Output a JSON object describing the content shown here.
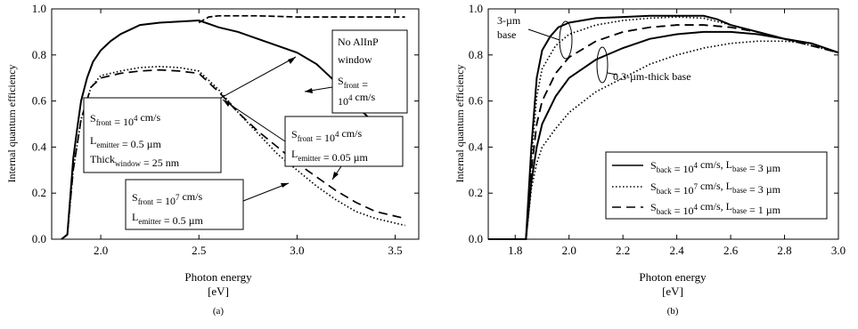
{
  "colors": {
    "ink": "#000000",
    "background": "#ffffff"
  },
  "chart_data": [
    {
      "id": "a",
      "type": "line",
      "panel_label": "(a)",
      "xlabel": "Photon energy",
      "xunit": "[eV]",
      "ylabel": "Internal quantum efficiency",
      "xlim": [
        1.75,
        3.62
      ],
      "ylim": [
        0.0,
        1.0
      ],
      "x_ticks": [
        "2.0",
        "2.5",
        "3.0",
        "3.5"
      ],
      "x_tick_values": [
        2.0,
        2.5,
        3.0,
        3.5
      ],
      "y_ticks": [
        "0.0",
        "0.2",
        "0.4",
        "0.6",
        "0.8",
        "1.0"
      ],
      "y_tick_values": [
        0.0,
        0.2,
        0.4,
        0.6,
        0.8,
        1.0
      ],
      "series": [
        {
          "style": "solid",
          "x": [
            1.8,
            1.83,
            1.86,
            1.88,
            1.9,
            1.93,
            1.96,
            2.0,
            2.05,
            2.1,
            2.15,
            2.2,
            2.3,
            2.4,
            2.5,
            2.55,
            2.6,
            2.7,
            2.8,
            2.9,
            3.0,
            3.1,
            3.2,
            3.3,
            3.4
          ],
          "y": [
            0.0,
            0.02,
            0.35,
            0.48,
            0.6,
            0.7,
            0.77,
            0.82,
            0.86,
            0.89,
            0.91,
            0.93,
            0.94,
            0.945,
            0.95,
            0.935,
            0.92,
            0.9,
            0.87,
            0.84,
            0.81,
            0.76,
            0.68,
            0.58,
            0.5
          ]
        },
        {
          "style": "dashed",
          "x": [
            2.5,
            2.55,
            2.6,
            2.8,
            3.0,
            3.2,
            3.4,
            3.55
          ],
          "y": [
            0.94,
            0.965,
            0.97,
            0.97,
            0.965,
            0.965,
            0.965,
            0.965
          ]
        },
        {
          "style": "dotted",
          "x": [
            1.8,
            1.83,
            1.86,
            1.9,
            1.95,
            2.0,
            2.1,
            2.2,
            2.3,
            2.4,
            2.5,
            2.6,
            2.7,
            2.8,
            2.9,
            3.0,
            3.1,
            3.2,
            3.3,
            3.4,
            3.55
          ],
          "y": [
            0.0,
            0.02,
            0.3,
            0.52,
            0.66,
            0.71,
            0.73,
            0.745,
            0.75,
            0.745,
            0.73,
            0.65,
            0.55,
            0.46,
            0.37,
            0.3,
            0.23,
            0.17,
            0.12,
            0.09,
            0.06
          ]
        },
        {
          "style": "longdash",
          "x": [
            1.8,
            1.83,
            1.86,
            1.9,
            1.95,
            2.0,
            2.1,
            2.2,
            2.3,
            2.4,
            2.5,
            2.6,
            2.7,
            2.8,
            2.9,
            3.0,
            3.1,
            3.2,
            3.3,
            3.4,
            3.55
          ],
          "y": [
            0.0,
            0.02,
            0.3,
            0.52,
            0.66,
            0.7,
            0.72,
            0.73,
            0.735,
            0.73,
            0.72,
            0.64,
            0.55,
            0.47,
            0.4,
            0.33,
            0.27,
            0.21,
            0.16,
            0.12,
            0.09
          ]
        }
      ],
      "annotations": [
        {
          "lines": [
            "No AlInP",
            "window",
            "S_front =",
            "10^4 cm/s"
          ]
        },
        {
          "lines": [
            "S_front = 10^4 cm/s",
            "L_emitter = 0.5 µm",
            "Thick_window = 25 nm"
          ]
        },
        {
          "lines": [
            "S_front = 10^4 cm/s",
            "L_emitter = 0.05 µm"
          ]
        },
        {
          "lines": [
            "S_front = 10^7 cm/s",
            "L_emitter = 0.5 µm"
          ]
        }
      ]
    },
    {
      "id": "b",
      "type": "line",
      "panel_label": "(b)",
      "xlabel": "Photon energy",
      "xunit": "[eV]",
      "ylabel": "Internal quantum efficiency",
      "xlim": [
        1.7,
        3.0
      ],
      "ylim": [
        0.0,
        1.0
      ],
      "x_ticks": [
        "1.8",
        "2.0",
        "2.2",
        "2.4",
        "2.6",
        "2.8",
        "3.0"
      ],
      "x_tick_values": [
        1.8,
        2.0,
        2.2,
        2.4,
        2.6,
        2.8,
        3.0
      ],
      "y_ticks": [
        "0.0",
        "0.2",
        "0.4",
        "0.6",
        "0.8",
        "1.0"
      ],
      "y_tick_values": [
        0.0,
        0.2,
        0.4,
        0.6,
        0.8,
        1.0
      ],
      "series": [
        {
          "style": "solid",
          "x": [
            1.7,
            1.84,
            1.86,
            1.88,
            1.9,
            1.93,
            1.96,
            2.0,
            2.1,
            2.2,
            2.3,
            2.4,
            2.5,
            2.55,
            2.6,
            2.7,
            2.8,
            2.9,
            3.0
          ],
          "y": [
            0.0,
            0.0,
            0.4,
            0.7,
            0.82,
            0.88,
            0.92,
            0.94,
            0.96,
            0.965,
            0.97,
            0.97,
            0.97,
            0.955,
            0.93,
            0.9,
            0.87,
            0.85,
            0.81
          ]
        },
        {
          "style": "dotted",
          "x": [
            1.84,
            1.86,
            1.88,
            1.9,
            1.95,
            2.0,
            2.1,
            2.2,
            2.3,
            2.4,
            2.5,
            2.6,
            2.7,
            2.8,
            2.9,
            3.0
          ],
          "y": [
            0.0,
            0.35,
            0.62,
            0.74,
            0.84,
            0.89,
            0.93,
            0.95,
            0.96,
            0.965,
            0.96,
            0.93,
            0.9,
            0.87,
            0.84,
            0.81
          ]
        },
        {
          "style": "longdash",
          "x": [
            1.84,
            1.86,
            1.88,
            1.9,
            1.95,
            2.0,
            2.1,
            2.2,
            2.3,
            2.4,
            2.5,
            2.6,
            2.7,
            2.8,
            2.9,
            3.0
          ],
          "y": [
            0.0,
            0.3,
            0.5,
            0.6,
            0.72,
            0.79,
            0.86,
            0.9,
            0.92,
            0.93,
            0.93,
            0.92,
            0.9,
            0.87,
            0.84,
            0.81
          ]
        },
        {
          "style": "solid",
          "x": [
            1.84,
            1.86,
            1.88,
            1.9,
            1.95,
            2.0,
            2.1,
            2.2,
            2.3,
            2.4,
            2.5,
            2.6,
            2.7,
            2.8,
            2.9,
            3.0
          ],
          "y": [
            0.0,
            0.25,
            0.4,
            0.5,
            0.62,
            0.7,
            0.78,
            0.83,
            0.87,
            0.89,
            0.9,
            0.9,
            0.89,
            0.87,
            0.85,
            0.81
          ]
        },
        {
          "style": "dotted",
          "x": [
            1.84,
            1.86,
            1.88,
            1.9,
            1.95,
            2.0,
            2.1,
            2.2,
            2.3,
            2.4,
            2.5,
            2.6,
            2.7,
            2.8,
            2.9,
            3.0
          ],
          "y": [
            0.0,
            0.22,
            0.33,
            0.4,
            0.48,
            0.55,
            0.64,
            0.7,
            0.76,
            0.8,
            0.83,
            0.85,
            0.86,
            0.86,
            0.85,
            0.81
          ]
        },
        {
          "style": "longdash",
          "x": [
            1.84,
            1.86,
            1.88,
            1.9,
            1.95,
            2.0,
            2.1,
            2.2,
            2.3,
            2.4,
            2.5,
            2.6,
            2.7,
            2.8,
            2.9,
            3.0
          ],
          "y": [
            0.0,
            0.3,
            0.5,
            0.6,
            0.72,
            0.79,
            0.86,
            0.9,
            0.92,
            0.93,
            0.93,
            0.92,
            0.9,
            0.87,
            0.84,
            0.81
          ]
        }
      ],
      "annotations": [
        {
          "lines": [
            "3-µm",
            "base"
          ]
        },
        {
          "lines": [
            "0.3-µm-thick base"
          ]
        }
      ],
      "legend": {
        "placement": "bottom-right",
        "entries": [
          {
            "style": "solid",
            "text": "S_back = 10^4 cm/s, L_base = 3 µm"
          },
          {
            "style": "dotted",
            "text": "S_back = 10^7 cm/s, L_base = 3 µm"
          },
          {
            "style": "longdash",
            "text": "S_back = 10^4 cm/s, L_base = 1 µm"
          }
        ]
      }
    }
  ]
}
